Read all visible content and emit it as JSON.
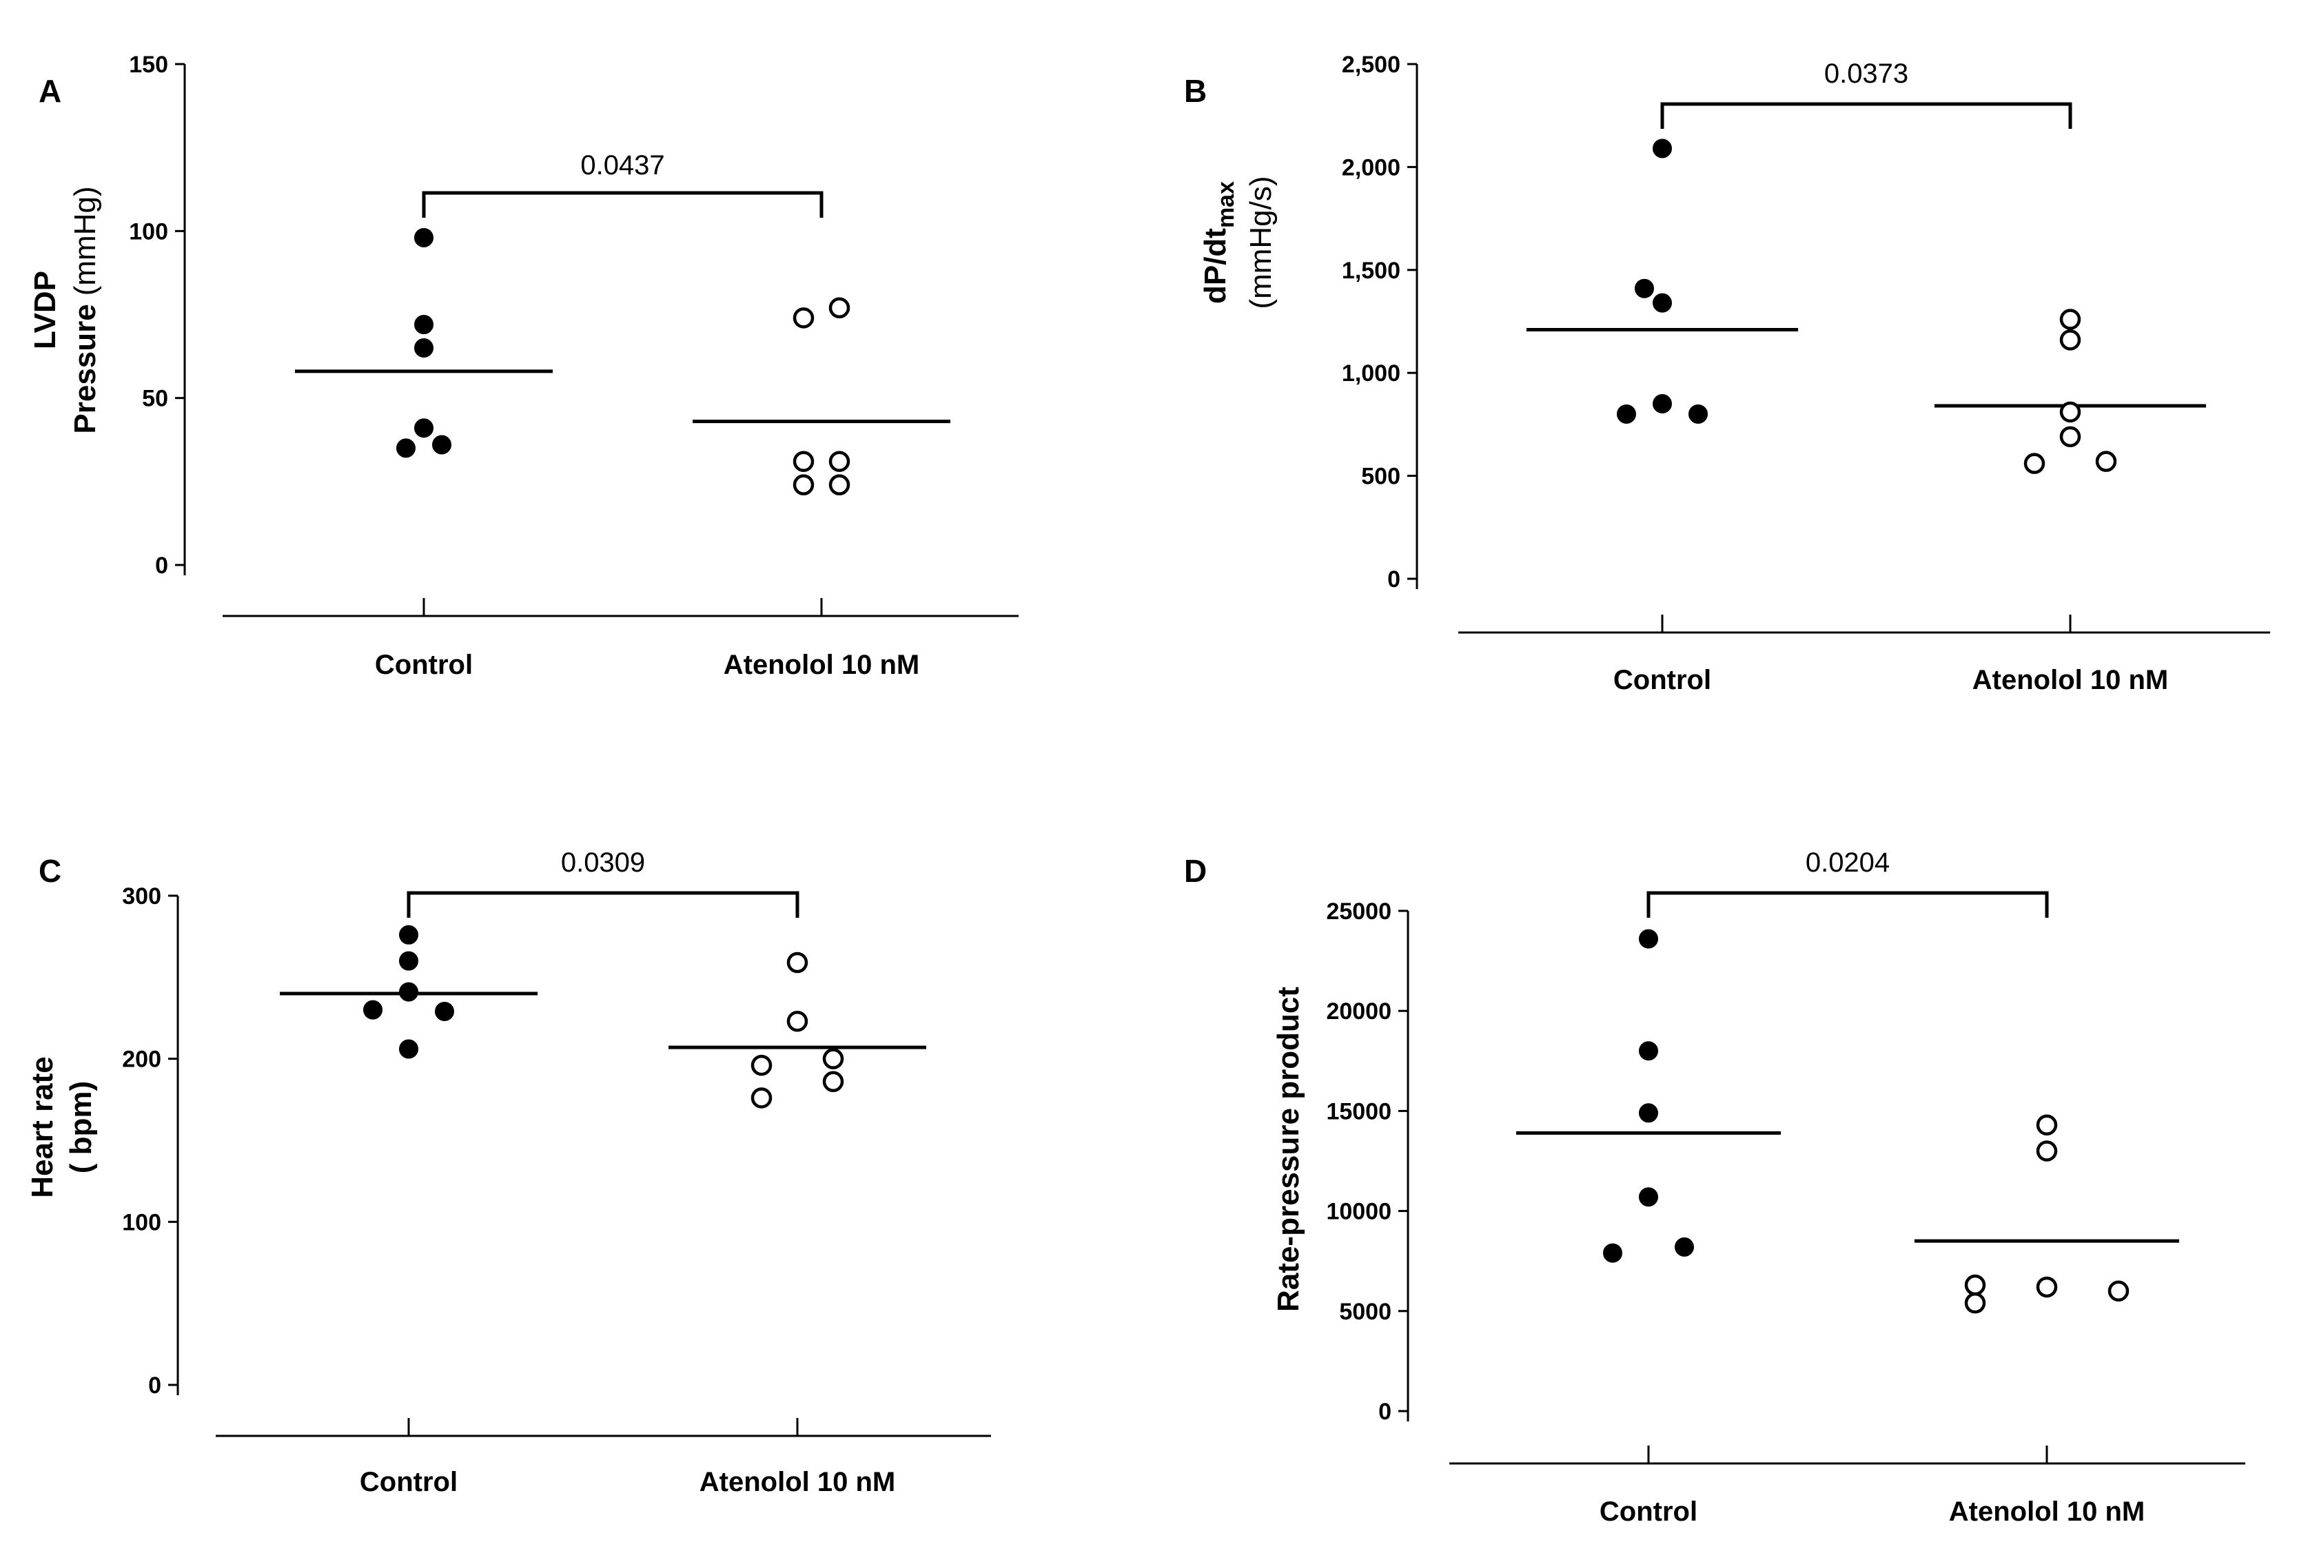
{
  "chart_data": [
    {
      "panel": "A",
      "type": "scatter",
      "categories": [
        "Control",
        "Atenolol 10 nM"
      ],
      "ylabel_lines": [
        "LVDP",
        "Pressure",
        "(mmHg)"
      ],
      "ylim": [
        0,
        150
      ],
      "yticks": [
        0,
        50,
        100,
        150
      ],
      "ytick_labels": [
        "0",
        "50",
        "100",
        "150"
      ],
      "series": [
        {
          "name": "Control",
          "fill": "filled",
          "values": [
            98,
            72,
            65,
            41,
            35,
            36
          ],
          "x_offsets": [
            0,
            0,
            0,
            0,
            -1,
            1
          ]
        },
        {
          "name": "Atenolol 10 nM",
          "fill": "open",
          "values": [
            74,
            77,
            31,
            31,
            24,
            24
          ],
          "x_offsets": [
            -1,
            1,
            -1,
            1,
            -1,
            1
          ]
        }
      ],
      "means": [
        58,
        43
      ],
      "p_value": "0.0437"
    },
    {
      "panel": "B",
      "type": "scatter",
      "categories": [
        "Control",
        "Atenolol 10 nM"
      ],
      "ylabel_main": "dP/dt",
      "ylabel_sub": "max",
      "ylabel_units": "(mmHg/s)",
      "ylim": [
        0,
        2500
      ],
      "yticks": [
        0,
        500,
        1000,
        1500,
        2000,
        2500
      ],
      "ytick_labels": [
        "0",
        "500",
        "1,000",
        "1,500",
        "2,000",
        "2,500"
      ],
      "series": [
        {
          "name": "Control",
          "fill": "filled",
          "values": [
            2090,
            1410,
            1340,
            850,
            800,
            800
          ],
          "x_offsets": [
            0,
            -1,
            0,
            0,
            -2,
            2
          ]
        },
        {
          "name": "Atenolol 10 nM",
          "fill": "open",
          "values": [
            1260,
            1160,
            810,
            690,
            560,
            570
          ],
          "x_offsets": [
            0,
            0,
            0,
            0,
            -2,
            2
          ]
        }
      ],
      "means": [
        1210,
        840
      ],
      "p_value": "0.0373"
    },
    {
      "panel": "C",
      "type": "scatter",
      "categories": [
        "Control",
        "Atenolol 10 nM"
      ],
      "ylabel_lines": [
        "Heart rate",
        "( bpm)"
      ],
      "ylim": [
        0,
        300
      ],
      "yticks": [
        0,
        100,
        200,
        300
      ],
      "ytick_labels": [
        "0",
        "100",
        "200",
        "300"
      ],
      "series": [
        {
          "name": "Control",
          "fill": "filled",
          "values": [
            276,
            260,
            241,
            230,
            229,
            206
          ],
          "x_offsets": [
            0,
            0,
            0,
            -2,
            2,
            0
          ]
        },
        {
          "name": "Atenolol 10 nM",
          "fill": "open",
          "values": [
            259,
            223,
            196,
            200,
            176,
            186
          ],
          "x_offsets": [
            0,
            0,
            -2,
            2,
            -2,
            2
          ]
        }
      ],
      "means": [
        240,
        207
      ],
      "p_value": "0.0309"
    },
    {
      "panel": "D",
      "type": "scatter",
      "categories": [
        "Control",
        "Atenolol 10 nM"
      ],
      "ylabel_lines": [
        "Rate-pressure product"
      ],
      "ylim": [
        0,
        25000
      ],
      "yticks": [
        0,
        5000,
        10000,
        15000,
        20000,
        25000
      ],
      "ytick_labels": [
        "0",
        "5000",
        "10000",
        "15000",
        "20000",
        "25000"
      ],
      "series": [
        {
          "name": "Control",
          "fill": "filled",
          "values": [
            23600,
            18000,
            14900,
            10700,
            7900,
            8200
          ],
          "x_offsets": [
            0,
            0,
            0,
            0,
            -2,
            2
          ]
        },
        {
          "name": "Atenolol 10 nM",
          "fill": "open",
          "values": [
            14300,
            13000,
            6300,
            5400,
            6200,
            6000
          ],
          "x_offsets": [
            0,
            0,
            -4,
            -4,
            0,
            4
          ]
        }
      ],
      "means": [
        13900,
        8500
      ],
      "p_value": "0.0204"
    }
  ]
}
